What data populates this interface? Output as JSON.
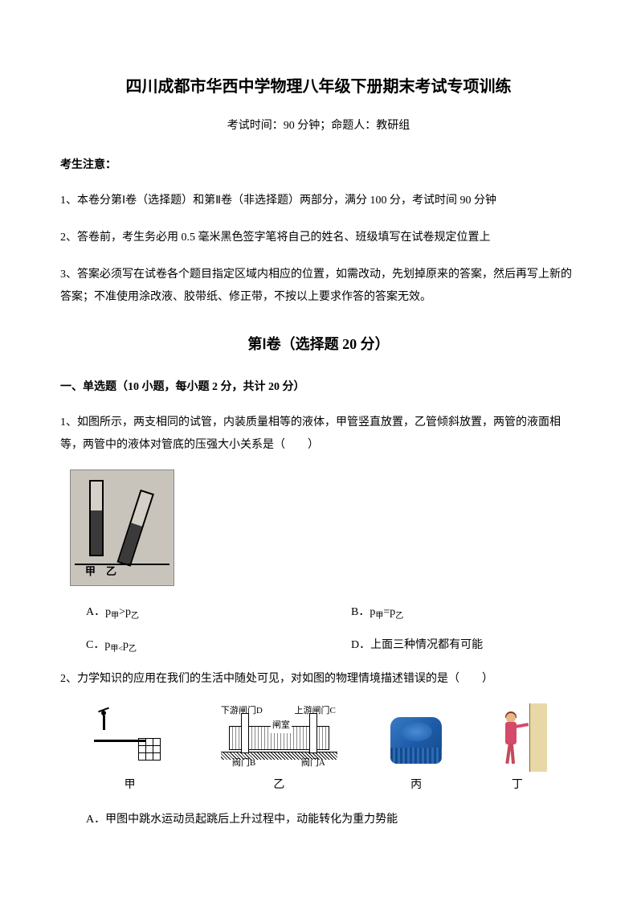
{
  "title": "四川成都市华西中学物理八年级下册期末考试专项训练",
  "subtitle": "考试时间：90 分钟；命题人：教研组",
  "notice_header": "考生注意：",
  "instructions": {
    "i1": "1、本卷分第Ⅰ卷（选择题）和第Ⅱ卷（非选择题）两部分，满分 100 分，考试时间 90 分钟",
    "i2": "2、答卷前，考生务必用 0.5 毫米黑色签字笔将自己的姓名、班级填写在试卷规定位置上",
    "i3": "3、答案必须写在试卷各个题目指定区域内相应的位置，如需改动，先划掉原来的答案，然后再写上新的答案；不准使用涂改液、胶带纸、修正带，不按以上要求作答的答案无效。"
  },
  "part1_title": "第Ⅰ卷（选择题  20 分）",
  "section1_header": "一、单选题（10 小题，每小题 2 分，共计 20 分）",
  "q1": {
    "text": "1、如图所示，两支相同的试管，内装质量相等的液体，甲管竖直放置，乙管倾斜放置，两管的液面相等，两管中的液体对管底的压强大小关系是（　　）",
    "tube_label_jia": "甲",
    "tube_label_yi": "乙",
    "optA": "A．p",
    "optA_sub1": "甲",
    "optA_mid": ">p",
    "optA_sub2": "乙",
    "optB": "B．p",
    "optB_sub1": "甲",
    "optB_mid": "=p",
    "optB_sub2": "乙",
    "optC": "C．p",
    "optC_sub1": "甲<",
    "optC_mid": "p",
    "optC_sub2": "乙",
    "optD": "D．上面三种情况都有可能"
  },
  "q2": {
    "text": "2、力学知识的应用在我们的生活中随处可见，对如图的物理情境描述错误的是（　　）",
    "fig_labels": {
      "jia": "甲",
      "yi": "乙",
      "bing": "丙",
      "ding": "丁"
    },
    "lock_labels": {
      "gate_d": "下游闸门D",
      "gate_c": "上游闸门C",
      "room": "闸室",
      "valve_b": "阀门B",
      "valve_a": "阀门A"
    },
    "optA": "A．甲图中跳水运动员起跳后上升过程中，动能转化为重力势能"
  },
  "colors": {
    "text": "#000000",
    "background": "#ffffff",
    "bottle_cap": "#1e5ba8",
    "person_dress": "#d44a6a",
    "wall": "#e8d8a8",
    "tube_bg": "#c8c4bc"
  },
  "fonts": {
    "title_size": 20,
    "body_size": 14,
    "part_title_size": 18
  }
}
